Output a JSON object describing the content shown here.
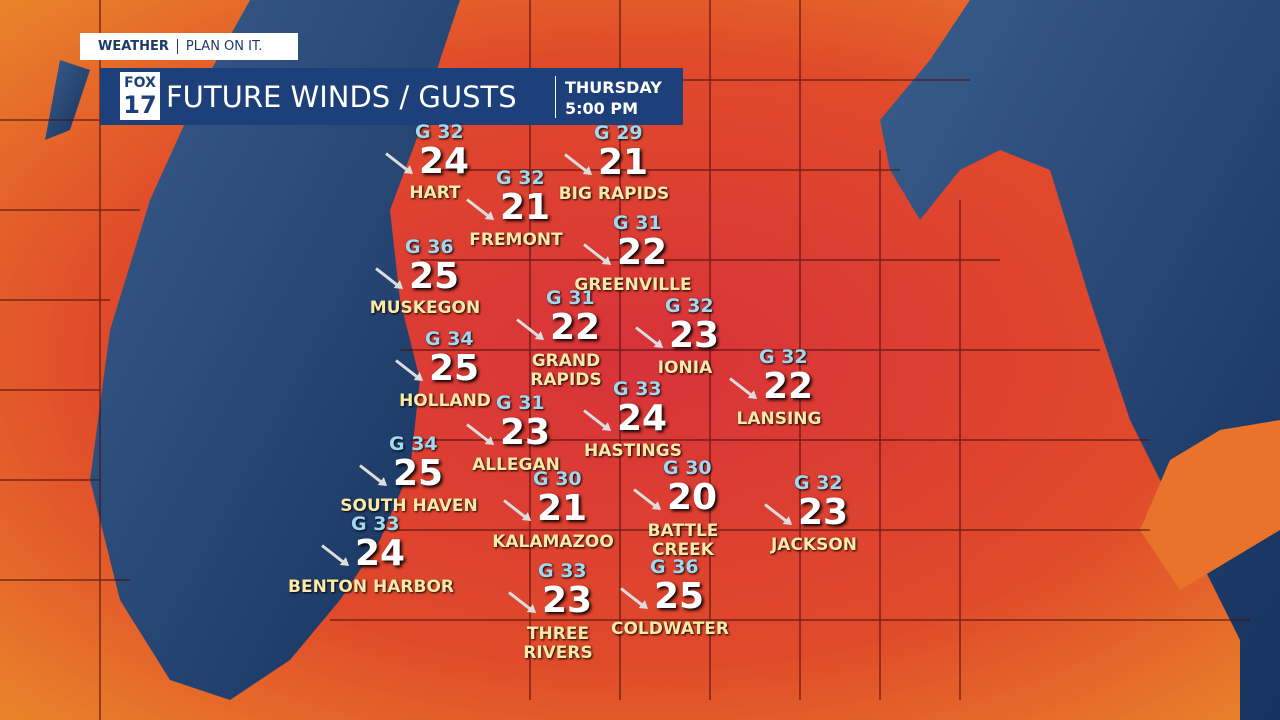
{
  "header": {
    "brand": "WEATHER",
    "tagline": "PLAN ON IT.",
    "logo_top": "FOX",
    "logo_bottom": "17",
    "title": "FUTURE WINDS / GUSTS",
    "day": "THURSDAY",
    "time": "5:00 PM"
  },
  "cities": [
    {
      "name": "HART",
      "wind": 24,
      "gust": "G 32"
    },
    {
      "name": "BIG RAPIDS",
      "wind": 21,
      "gust": "G 29"
    },
    {
      "name": "FREMONT",
      "wind": 21,
      "gust": "G 32"
    },
    {
      "name": "GREENVILLE",
      "wind": 22,
      "gust": "G 31"
    },
    {
      "name": "MUSKEGON",
      "wind": 25,
      "gust": "G 36"
    },
    {
      "name": "GRAND\nRAPIDS",
      "wind": 22,
      "gust": "G 31"
    },
    {
      "name": "IONIA",
      "wind": 23,
      "gust": "G 32"
    },
    {
      "name": "HOLLAND",
      "wind": 25,
      "gust": "G 34"
    },
    {
      "name": "LANSING",
      "wind": 22,
      "gust": "G 32"
    },
    {
      "name": "HASTINGS",
      "wind": 24,
      "gust": "G 33"
    },
    {
      "name": "ALLEGAN",
      "wind": 23,
      "gust": "G 31"
    },
    {
      "name": "SOUTH HAVEN",
      "wind": 25,
      "gust": "G 34"
    },
    {
      "name": "BATTLE\nCREEK",
      "wind": 20,
      "gust": "G 30"
    },
    {
      "name": "KALAMAZOO",
      "wind": 21,
      "gust": "G 30"
    },
    {
      "name": "JACKSON",
      "wind": 23,
      "gust": "G 32"
    },
    {
      "name": "BENTON HARBOR",
      "wind": 24,
      "gust": "G 33"
    },
    {
      "name": "THREE\nRIVERS",
      "wind": 23,
      "gust": "G 33"
    },
    {
      "name": "COLDWATER",
      "wind": 25,
      "gust": "G 36"
    }
  ]
}
